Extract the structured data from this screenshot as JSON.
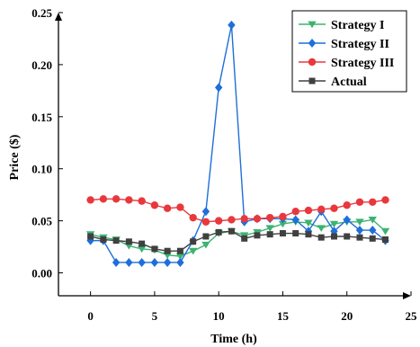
{
  "chart_data": {
    "type": "line",
    "title": "",
    "xlabel": "Time (h)",
    "ylabel": "Price ($)",
    "xlim": [
      -2.5,
      25
    ],
    "ylim": [
      -0.022,
      0.25
    ],
    "x_ticks": [
      0,
      5,
      10,
      15,
      20,
      25
    ],
    "y_ticks": [
      0.0,
      0.05,
      0.1,
      0.15,
      0.2,
      0.25
    ],
    "x_tick_labels": [
      "0",
      "5",
      "10",
      "15",
      "20",
      "25"
    ],
    "y_tick_labels": [
      "0.00",
      "0.05",
      "0.10",
      "0.15",
      "0.20",
      "0.25"
    ],
    "grid": false,
    "legend_position": "top-right",
    "x": [
      0,
      1,
      2,
      3,
      4,
      5,
      6,
      7,
      8,
      9,
      10,
      11,
      12,
      13,
      14,
      15,
      16,
      17,
      18,
      19,
      20,
      21,
      22,
      23
    ],
    "series": [
      {
        "name": "Strategy I",
        "color": "#3cb371",
        "marker": "triangle-down",
        "values": [
          0.037,
          0.034,
          0.032,
          0.026,
          0.023,
          0.022,
          0.017,
          0.016,
          0.021,
          0.027,
          0.038,
          0.04,
          0.036,
          0.039,
          0.043,
          0.047,
          0.049,
          0.048,
          0.043,
          0.047,
          0.049,
          0.049,
          0.051,
          0.04
        ]
      },
      {
        "name": "Strategy II",
        "color": "#1e6fd9",
        "marker": "diamond",
        "values": [
          0.031,
          0.031,
          0.01,
          0.01,
          0.01,
          0.01,
          0.01,
          0.01,
          0.031,
          0.059,
          0.178,
          0.238,
          0.049,
          0.052,
          0.052,
          0.052,
          0.051,
          0.04,
          0.059,
          0.04,
          0.051,
          0.041,
          0.041,
          0.031
        ]
      },
      {
        "name": "Strategy III",
        "color": "#e8383d",
        "marker": "circle",
        "values": [
          0.07,
          0.071,
          0.071,
          0.07,
          0.069,
          0.065,
          0.062,
          0.063,
          0.053,
          0.049,
          0.05,
          0.051,
          0.052,
          0.052,
          0.053,
          0.054,
          0.059,
          0.06,
          0.061,
          0.062,
          0.065,
          0.068,
          0.068,
          0.07
        ]
      },
      {
        "name": "Actual",
        "color": "#404040",
        "marker": "square",
        "values": [
          0.035,
          0.032,
          0.031,
          0.03,
          0.028,
          0.023,
          0.021,
          0.021,
          0.03,
          0.035,
          0.039,
          0.04,
          0.033,
          0.036,
          0.037,
          0.038,
          0.038,
          0.037,
          0.034,
          0.035,
          0.035,
          0.034,
          0.033,
          0.032
        ]
      }
    ]
  }
}
